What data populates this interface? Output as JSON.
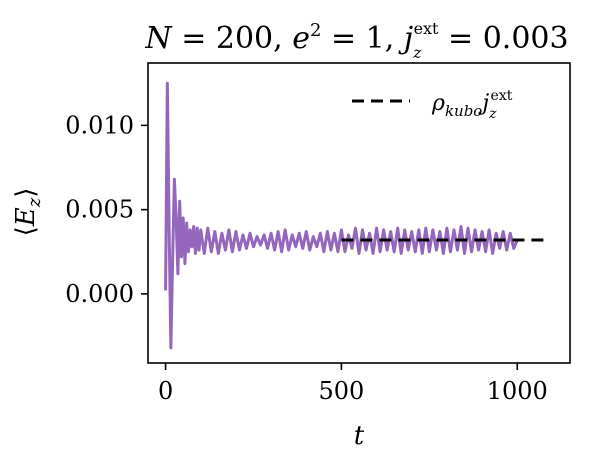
{
  "chart_data": {
    "type": "line",
    "title": "N = 200, e² = 1, j_z^ext = 0.003",
    "xlabel": "t",
    "ylabel": "⟨E_z⟩",
    "xlim": [
      -50,
      1150
    ],
    "ylim": [
      -0.0041,
      0.0137
    ],
    "x_ticks": [
      0,
      500,
      1000
    ],
    "x_tick_labels": [
      "0",
      "500",
      "1000"
    ],
    "y_ticks": [
      0.0,
      0.005,
      0.01
    ],
    "y_tick_labels": [
      "0.000",
      "0.005",
      "0.010"
    ],
    "grid": false,
    "legend_position": "top-right",
    "series": [
      {
        "name": "",
        "style": "solid",
        "color": "#9467bd",
        "x": [
          0,
          5,
          10,
          15,
          20,
          25,
          30,
          35,
          40,
          45,
          50,
          55,
          60,
          65,
          70,
          75,
          80,
          85,
          90,
          95,
          100,
          110,
          120,
          130,
          140,
          150,
          160,
          170,
          180,
          190,
          200,
          210,
          220,
          230,
          240,
          250,
          260,
          270,
          280,
          290,
          300,
          310,
          320,
          330,
          340,
          350,
          360,
          370,
          380,
          390,
          400,
          410,
          420,
          430,
          440,
          450,
          460,
          470,
          480,
          490,
          500,
          510,
          520,
          530,
          540,
          550,
          560,
          570,
          580,
          590,
          600,
          610,
          620,
          630,
          640,
          650,
          660,
          670,
          680,
          690,
          700,
          710,
          720,
          730,
          740,
          750,
          760,
          770,
          780,
          790,
          800,
          810,
          820,
          830,
          840,
          850,
          860,
          870,
          880,
          890,
          900,
          910,
          920,
          930,
          940,
          950,
          960,
          970,
          980,
          990,
          1000
        ],
        "y": [
          0.0002,
          0.0125,
          0.004,
          -0.0032,
          0.002,
          0.0068,
          0.0045,
          0.0012,
          0.0055,
          0.0022,
          0.0045,
          0.0018,
          0.0042,
          0.0025,
          0.0038,
          0.0028,
          0.004,
          0.0024,
          0.0039,
          0.0026,
          0.0038,
          0.0024,
          0.0039,
          0.0025,
          0.0037,
          0.0024,
          0.0036,
          0.0026,
          0.0038,
          0.0025,
          0.0037,
          0.0026,
          0.0035,
          0.0027,
          0.0036,
          0.0028,
          0.0034,
          0.0029,
          0.0035,
          0.0027,
          0.0036,
          0.0026,
          0.0037,
          0.0025,
          0.0038,
          0.0026,
          0.0035,
          0.0028,
          0.0036,
          0.0027,
          0.0037,
          0.0026,
          0.0034,
          0.0028,
          0.0036,
          0.0025,
          0.0037,
          0.0026,
          0.0036,
          0.0025,
          0.0038,
          0.0025,
          0.0035,
          0.0027,
          0.0039,
          0.0024,
          0.0038,
          0.0026,
          0.0036,
          0.0024,
          0.0039,
          0.0025,
          0.0038,
          0.0026,
          0.0037,
          0.0025,
          0.0039,
          0.0024,
          0.0038,
          0.0026,
          0.0037,
          0.0025,
          0.0038,
          0.0024,
          0.0039,
          0.0025,
          0.0038,
          0.0026,
          0.0037,
          0.0024,
          0.0039,
          0.0025,
          0.0038,
          0.0026,
          0.004,
          0.0024,
          0.0039,
          0.0025,
          0.0038,
          0.0026,
          0.0037,
          0.0025,
          0.0038,
          0.0024,
          0.0036,
          0.0027,
          0.0037,
          0.0026,
          0.0036,
          0.0027,
          0.0032
        ]
      },
      {
        "name": "ρ_kubo j_z^ext",
        "style": "dashed",
        "color": "#000000",
        "x": [
          500,
          1080
        ],
        "y": [
          0.0032,
          0.0032
        ]
      }
    ]
  }
}
